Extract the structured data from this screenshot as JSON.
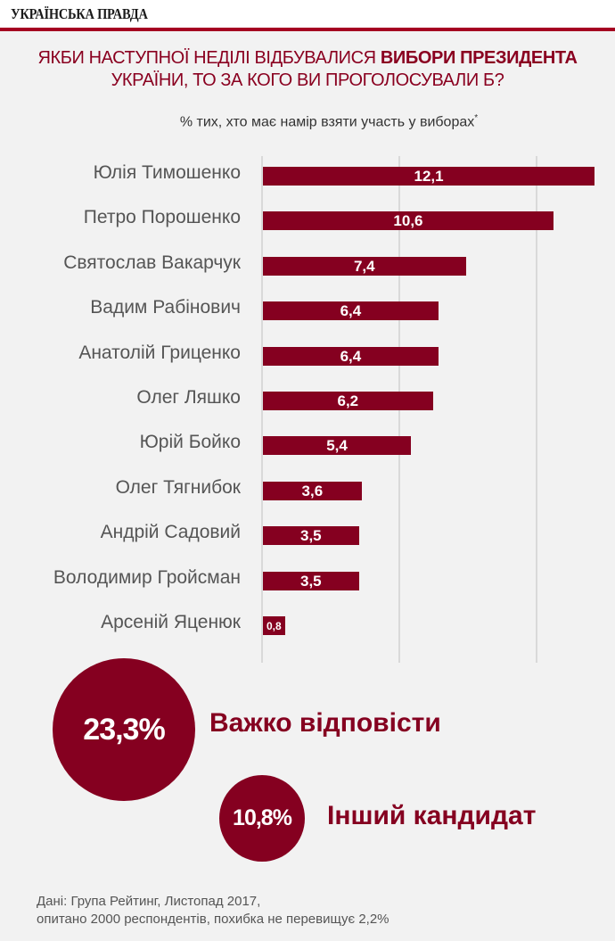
{
  "masthead": {
    "logo": "УКРАЇНСЬКА ПРАВДА",
    "accent_color": "#a50021"
  },
  "title": {
    "part1": "ЯКБИ НАСТУПНОЇ НЕДІЛІ ВІДБУВАЛИСЯ ",
    "part2_bold": "ВИБОРИ ПРЕЗИДЕНТА",
    "line2": "УКРАЇНИ, ТО ЗА КОГО ВИ ПРОГОЛОСУВАЛИ Б?"
  },
  "subtitle": {
    "text": "% тих, хто має намір взяти участь у виборах",
    "footnote_mark": "*"
  },
  "chart_data": {
    "type": "bar",
    "orientation": "horizontal",
    "title": "Якби наступної неділі відбувалися вибори президента України, то за кого ви проголосували б?",
    "subtitle": "% тих, хто має намір взяти участь у виборах*",
    "xlabel": "",
    "ylabel": "",
    "categories": [
      "Юлія Тимошенко",
      "Петро Порошенко",
      "Святослав Вакарчук",
      "Вадим Рабінович",
      "Анатолій Гриценко",
      "Олег Ляшко",
      "Юрій Бойко",
      "Олег Тягнибок",
      "Андрій Садовий",
      "Володимир Гройсман",
      "Арсеній Яценюк"
    ],
    "values": [
      12.1,
      10.6,
      7.4,
      6.4,
      6.4,
      6.2,
      5.4,
      3.6,
      3.5,
      3.5,
      0.8
    ],
    "value_labels": [
      "12,1",
      "10,6",
      "7,4",
      "6,4",
      "6,4",
      "6,2",
      "5,4",
      "3,6",
      "3,5",
      "3,5",
      "0,8"
    ],
    "xlim": [
      0,
      12.5
    ],
    "gridlines_at": [
      0,
      5,
      10
    ],
    "grid": true,
    "bar_color": "#850020",
    "extra": [
      {
        "label": "Важко відповісти",
        "value": 23.3,
        "display": "23,3%"
      },
      {
        "label": "Інший кандидат",
        "value": 10.8,
        "display": "10,8%"
      }
    ]
  },
  "bubbles": {
    "big": {
      "value": "23,3%",
      "label": "Важко відповісти"
    },
    "small": {
      "value": "10,8%",
      "label": "Інший кандидат"
    }
  },
  "source": {
    "line1": "Дані: Група Рейтинг, Листопад 2017,",
    "line2": "опитано 2000 респондентів, похибка не перевищує 2,2%"
  }
}
